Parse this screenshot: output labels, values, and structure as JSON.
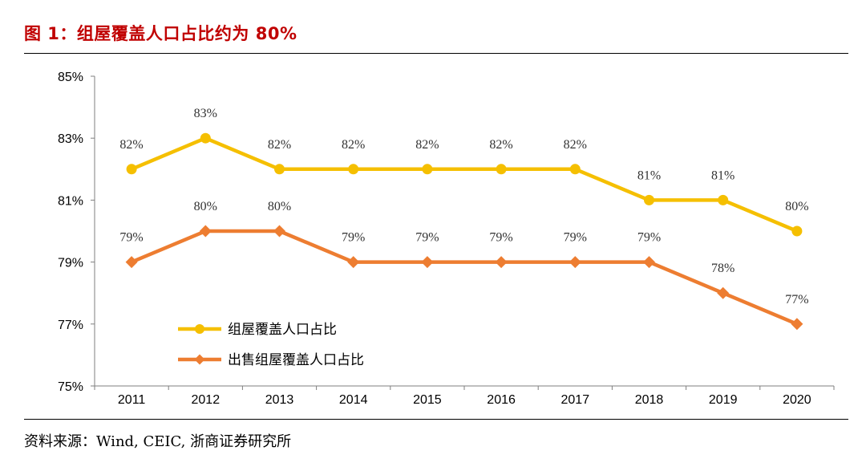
{
  "figure": {
    "title": "图 1：组屋覆盖人口占比约为 80%",
    "source": "资料来源：Wind, CEIC, 浙商证券研究所"
  },
  "chart_data": {
    "type": "line",
    "title": "组屋覆盖人口占比约为 80%",
    "xlabel": "",
    "ylabel": "",
    "categories": [
      "2011",
      "2012",
      "2013",
      "2014",
      "2015",
      "2016",
      "2017",
      "2018",
      "2019",
      "2020"
    ],
    "ylim": [
      75,
      85
    ],
    "yticks": [
      75,
      77,
      79,
      81,
      83,
      85
    ],
    "y_tick_suffix": "%",
    "grid": false,
    "legend_position": "bottom-left inside plot",
    "series": [
      {
        "name": "组屋覆盖人口占比",
        "values": [
          82,
          83,
          82,
          82,
          82,
          82,
          82,
          81,
          81,
          80
        ],
        "labels": [
          "82%",
          "83%",
          "82%",
          "82%",
          "82%",
          "82%",
          "82%",
          "81%",
          "81%",
          "80%"
        ],
        "color": "#f5bf00",
        "marker": "circle"
      },
      {
        "name": "出售组屋覆盖人口占比",
        "values": [
          79,
          80,
          80,
          79,
          79,
          79,
          79,
          79,
          78,
          77
        ],
        "labels": [
          "79%",
          "80%",
          "80%",
          "79%",
          "79%",
          "79%",
          "79%",
          "79%",
          "78%",
          "77%"
        ],
        "color": "#ed7d31",
        "marker": "diamond"
      }
    ]
  }
}
